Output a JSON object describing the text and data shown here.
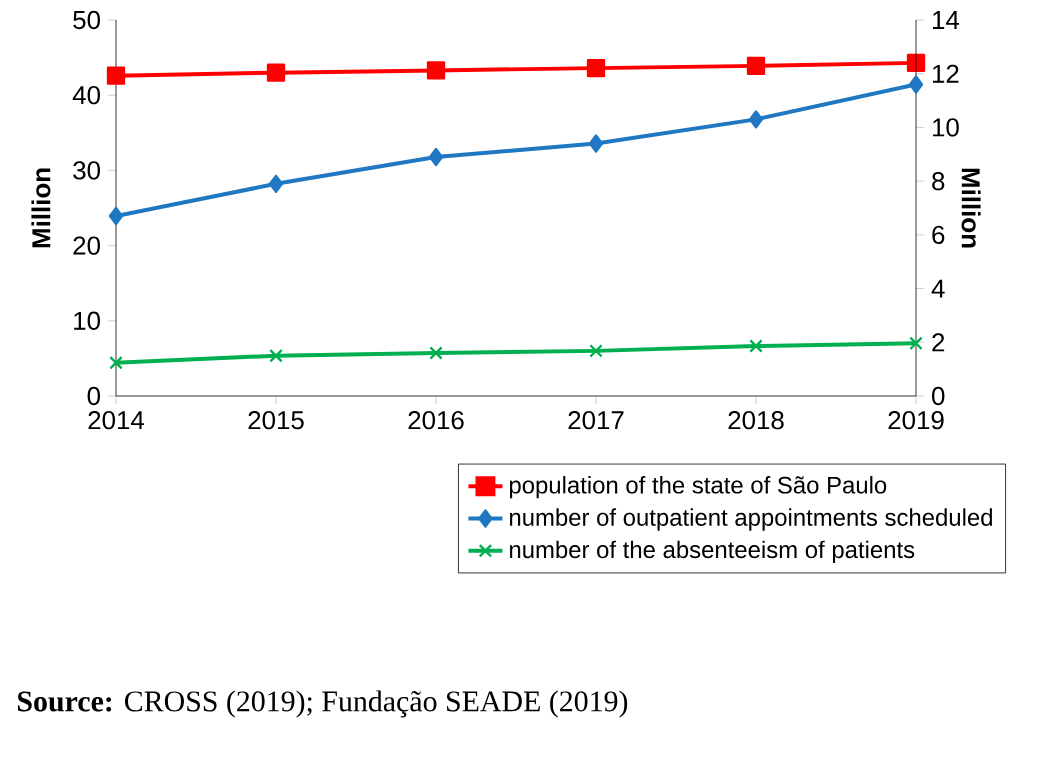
{
  "chart_data": {
    "type": "line",
    "ylabel": "Million",
    "y2label": "Million",
    "x": [
      2014,
      2015,
      2016,
      2017,
      2018,
      2019
    ],
    "xlim": [
      2014,
      2019
    ],
    "xticks": [
      2014,
      2015,
      2016,
      2017,
      2018,
      2019
    ],
    "ylim": [
      0,
      50
    ],
    "yticks": [
      0,
      10,
      20,
      30,
      40,
      50
    ],
    "y2lim": [
      0,
      14
    ],
    "y2ticks": [
      0,
      2,
      4,
      6,
      8,
      10,
      12,
      14
    ],
    "series": [
      {
        "name": "population of the state of São Paulo",
        "color": "#ff0000",
        "marker": "square",
        "values": [
          42.6,
          43.0,
          43.3,
          43.6,
          43.9,
          44.3
        ]
      },
      {
        "name": "number of outpatient appointments scheduled",
        "color": "#1f78c1",
        "marker": "diamond",
        "axis": "y2",
        "values": [
          6.7,
          7.9,
          8.9,
          9.4,
          10.3,
          11.6
        ]
      },
      {
        "name": "number of the absenteeism of patients",
        "color": "#00b050",
        "marker": "cross",
        "axis": "y2",
        "values": [
          1.24,
          1.5,
          1.6,
          1.68,
          1.86,
          1.96
        ]
      }
    ],
    "legend": "bottom",
    "grid": false,
    "line_style": "solid",
    "annotations": [
      "**Source:** CROSS (2019); Fundação SEADE (2019)"
    ]
  }
}
